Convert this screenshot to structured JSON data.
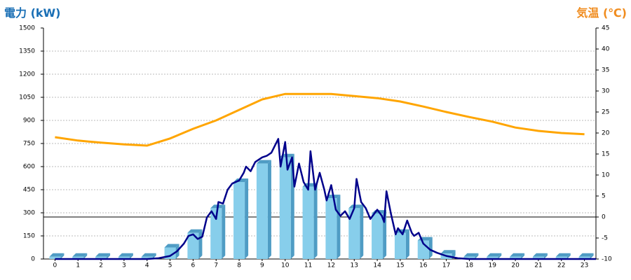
{
  "chart_data": {
    "type": "bar_line",
    "y_title": "電力 (kW)",
    "y2_title": "気温 (℃)",
    "y_title_color": "#1a6fb5",
    "y2_title_color": "#f08c1e",
    "categories": [
      "0",
      "1",
      "2",
      "3",
      "4",
      "5",
      "6",
      "7",
      "8",
      "9",
      "10",
      "11",
      "12",
      "13",
      "14",
      "15",
      "16",
      "17",
      "18",
      "19",
      "20",
      "21",
      "22",
      "23"
    ],
    "xlim": [
      -0.5,
      23.5
    ],
    "ylim": [
      0,
      1500
    ],
    "yticks": [
      0,
      150,
      300,
      450,
      600,
      750,
      900,
      1050,
      1200,
      1350,
      1500
    ],
    "y2lim": [
      -10,
      45
    ],
    "y2ticks": [
      -10,
      -5,
      0,
      5,
      10,
      15,
      20,
      25,
      30,
      35,
      40,
      45
    ],
    "y2_refline": 0,
    "grid": true,
    "bars": {
      "color": "#87ceeb",
      "side_color": "#4f9cc4",
      "values": [
        15,
        15,
        15,
        15,
        15,
        75,
        170,
        330,
        500,
        620,
        660,
        470,
        395,
        330,
        295,
        170,
        120,
        35,
        15,
        15,
        15,
        15,
        15,
        15
      ]
    },
    "temperature": {
      "color": "#ffa500",
      "axis": "y2",
      "values": [
        19,
        18.2,
        17.7,
        17.3,
        17,
        18.7,
        21,
        23,
        25.5,
        28,
        29.3,
        29.3,
        29.3,
        28.8,
        28.3,
        27.5,
        26.3,
        25,
        23.8,
        22.7,
        21.3,
        20.5,
        20,
        19.7
      ]
    },
    "power": {
      "color": "#00008b",
      "x": [
        0,
        4,
        4.5,
        5,
        5.3,
        5.6,
        5.8,
        6,
        6.2,
        6.4,
        6.6,
        6.8,
        7,
        7.1,
        7.3,
        7.5,
        7.7,
        8,
        8.2,
        8.3,
        8.5,
        8.7,
        9,
        9.2,
        9.4,
        9.7,
        9.8,
        10,
        10.1,
        10.3,
        10.4,
        10.6,
        10.8,
        11,
        11.1,
        11.3,
        11.5,
        11.7,
        11.8,
        12,
        12.2,
        12.4,
        12.6,
        12.8,
        13,
        13.1,
        13.3,
        13.5,
        13.7,
        13.9,
        14,
        14.2,
        14.3,
        14.4,
        14.6,
        14.8,
        14.9,
        15.1,
        15.3,
        15.5,
        15.6,
        15.8,
        16,
        16.3,
        16.6,
        17,
        17.5,
        18,
        23.5
      ],
      "values": [
        0,
        0,
        5,
        20,
        50,
        100,
        150,
        160,
        130,
        145,
        270,
        310,
        260,
        370,
        360,
        450,
        490,
        510,
        560,
        600,
        570,
        630,
        660,
        670,
        690,
        780,
        600,
        760,
        580,
        660,
        470,
        620,
        500,
        450,
        700,
        450,
        560,
        450,
        380,
        480,
        320,
        280,
        310,
        260,
        330,
        520,
        370,
        330,
        260,
        300,
        320,
        280,
        240,
        440,
        290,
        160,
        200,
        160,
        250,
        170,
        150,
        170,
        100,
        60,
        40,
        20,
        5,
        0,
        0
      ]
    }
  }
}
